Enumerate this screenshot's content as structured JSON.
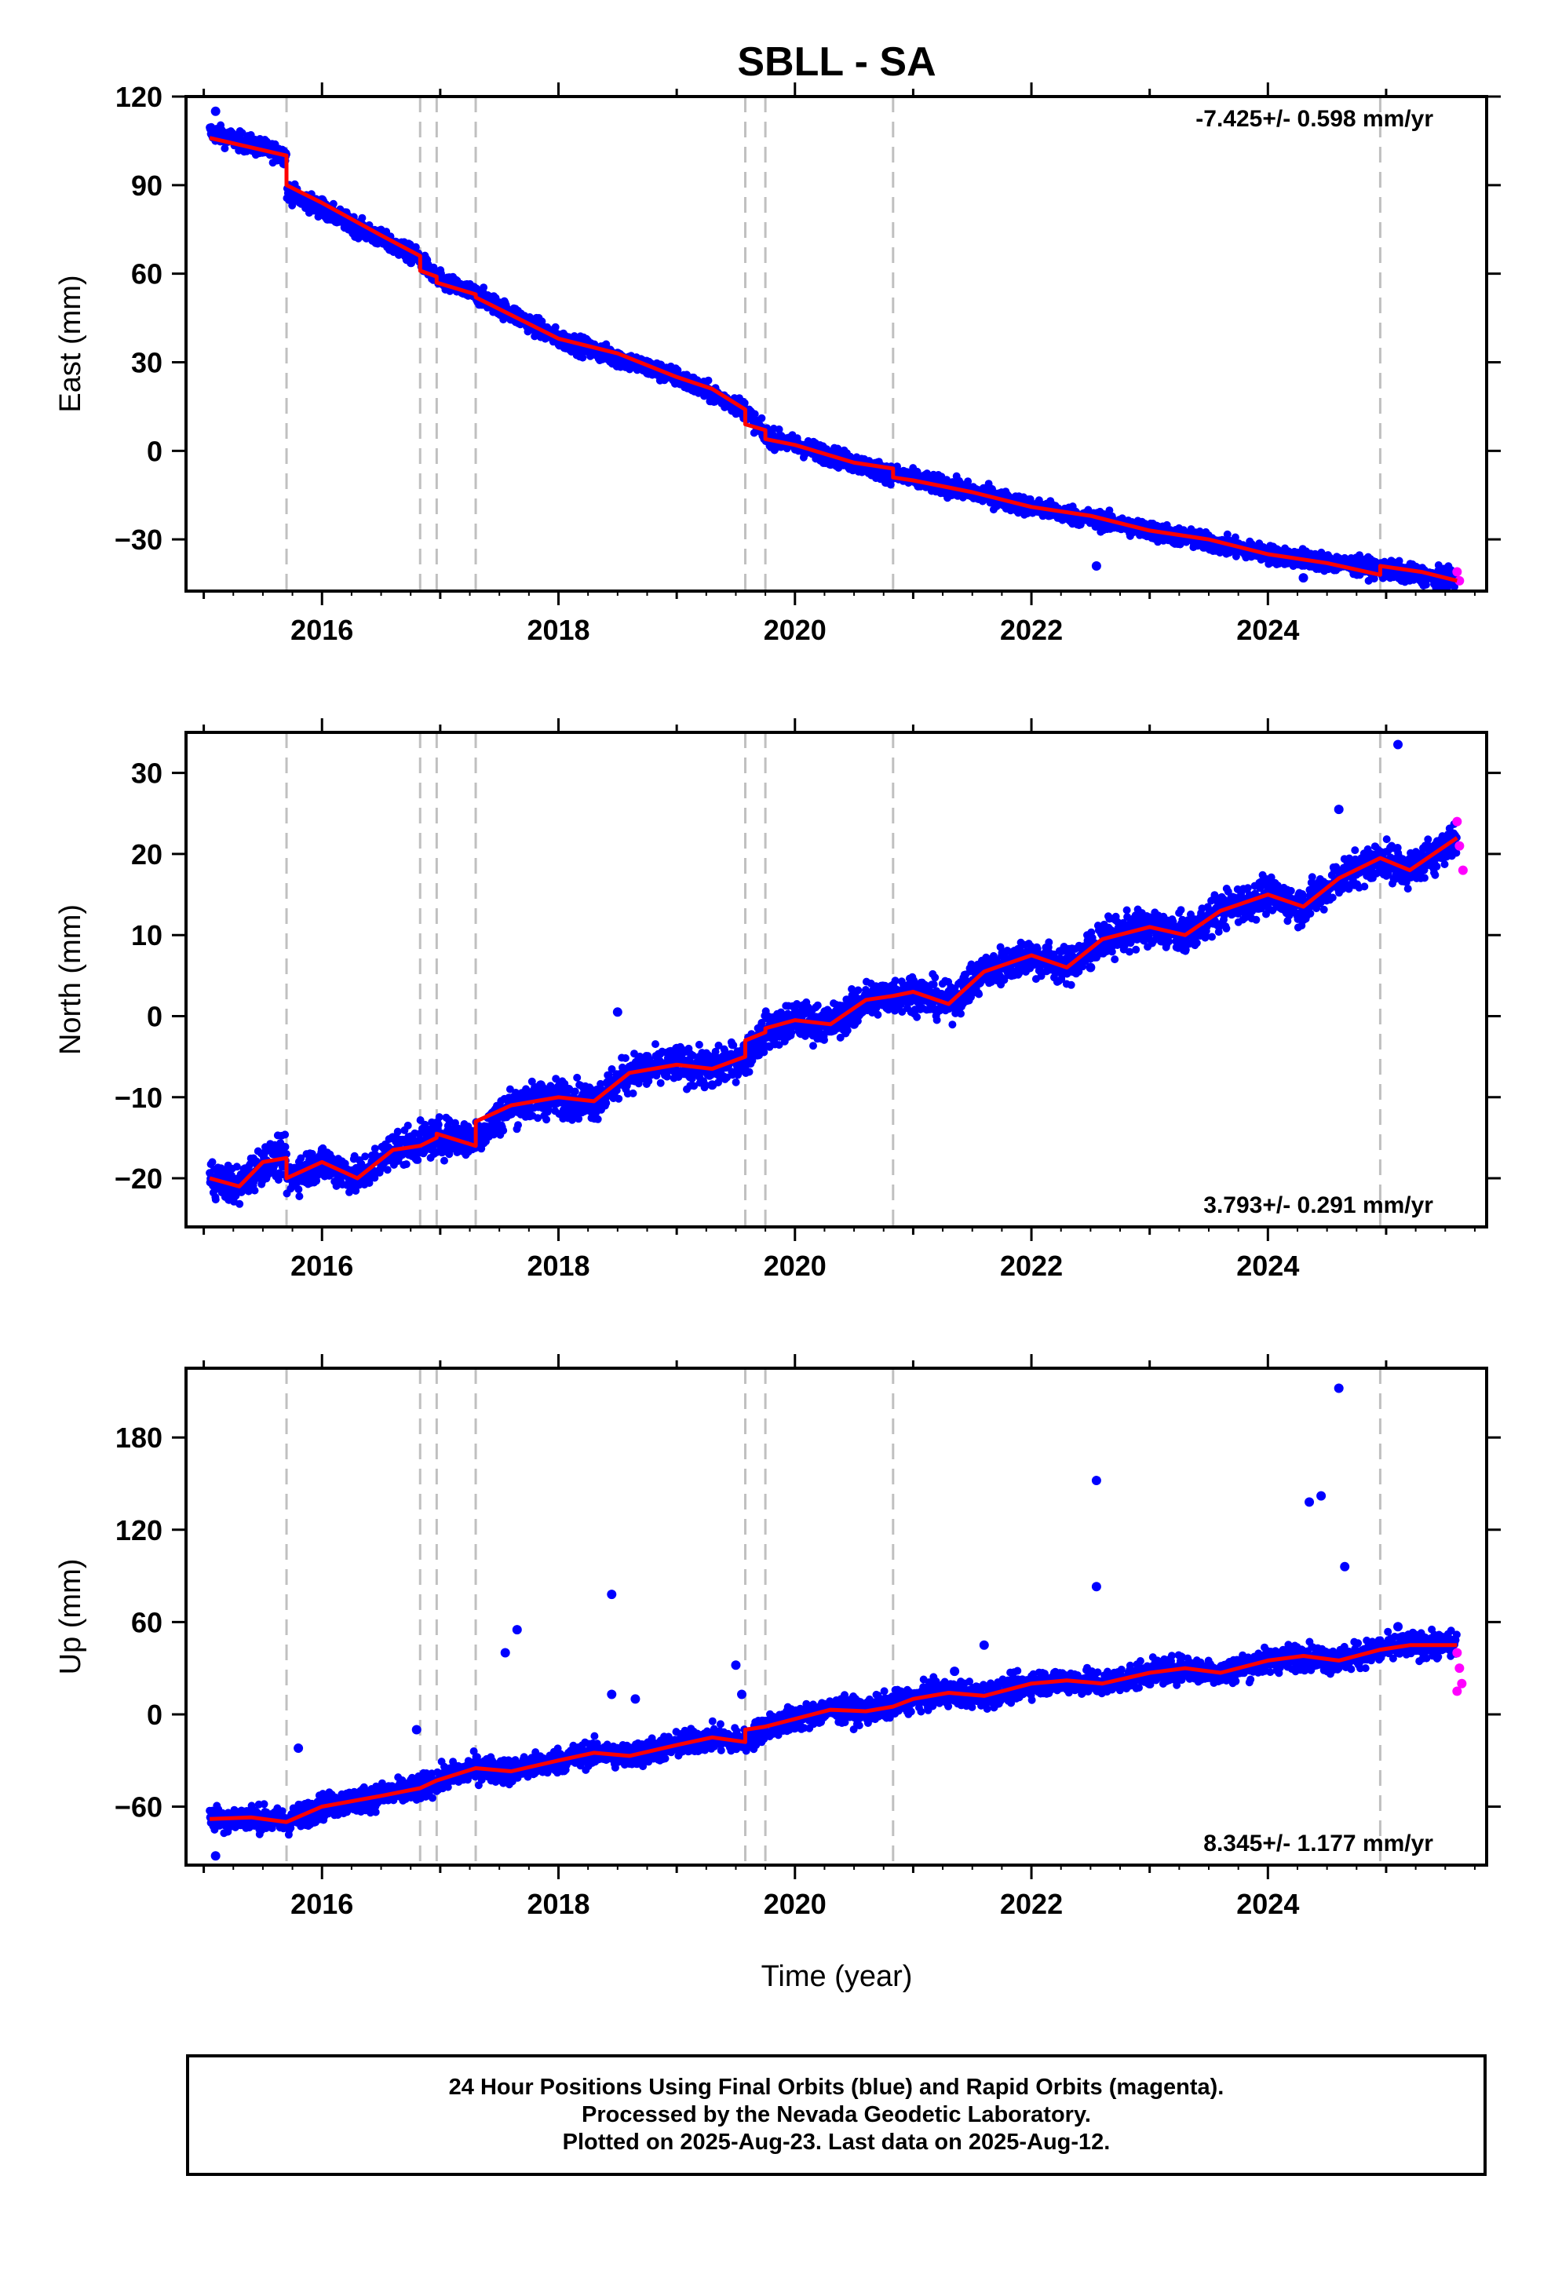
{
  "chart_data": [
    {
      "type": "scatter",
      "title": "SBLL - SA",
      "ylabel": "East (mm)",
      "xlabel": "",
      "xlim": [
        2014.85,
        2025.85
      ],
      "ylim": [
        -47.5,
        120
      ],
      "xticks": [
        2016,
        2018,
        2020,
        2022,
        2024
      ],
      "yticks": [
        -30,
        0,
        30,
        60,
        90,
        120
      ],
      "rate_label": "-7.425+/- 0.598 mm/yr",
      "rate_position": "top-right",
      "grid": false,
      "colors": {
        "final": "#0000ff",
        "rapid": "#ff00ff",
        "model": "#ff0000",
        "events": "#c0c0c0"
      },
      "event_lines": [
        2015.7,
        2016.83,
        2016.97,
        2017.3,
        2019.58,
        2019.75,
        2020.83,
        2024.95
      ],
      "model": {
        "x": [
          2015.05,
          2015.7,
          2015.7,
          2016.0,
          2016.5,
          2016.83,
          2016.83,
          2016.97,
          2016.97,
          2017.3,
          2017.3,
          2018.0,
          2018.5,
          2019.0,
          2019.3,
          2019.58,
          2019.58,
          2019.75,
          2019.75,
          2020.0,
          2020.5,
          2020.83,
          2020.83,
          2021.0,
          2021.5,
          2022.0,
          2022.5,
          2023.0,
          2023.5,
          2024.0,
          2024.5,
          2024.95,
          2024.95,
          2025.3,
          2025.6
        ],
        "y": [
          106,
          100,
          90,
          84,
          73,
          66,
          61,
          59,
          57,
          53,
          52,
          38,
          33,
          25,
          21,
          14,
          9,
          7,
          4,
          2,
          -4,
          -6,
          -9,
          -10,
          -14,
          -19,
          -22,
          -27,
          -30,
          -35,
          -38,
          -42,
          -39,
          -41,
          -44
        ]
      },
      "final_orbits": {
        "x": [
          2015.1,
          2015.5,
          2016.0,
          2016.5,
          2017.0,
          2017.5,
          2018.0,
          2018.5,
          2019.0,
          2019.5,
          2020.0,
          2020.5,
          2021.0,
          2021.5,
          2022.0,
          2022.5,
          2022.55,
          2023.0,
          2023.5,
          2024.0,
          2024.3,
          2024.5,
          2025.0,
          2025.5
        ],
        "y": [
          115,
          104,
          85,
          73,
          60,
          50,
          38,
          33,
          25,
          16,
          3,
          -4,
          -10,
          -14,
          -19,
          -22,
          -39,
          -27,
          -30,
          -35,
          -43,
          -37,
          -40,
          -44
        ]
      },
      "rapid_orbits": {
        "x": [
          2025.6,
          2025.62
        ],
        "y": [
          -41,
          -44
        ]
      },
      "band": {
        "x": [
          2015.05,
          2015.7,
          2015.7,
          2016.83,
          2016.97,
          2017.3,
          2018.0,
          2019.0,
          2019.58,
          2019.75,
          2020.0,
          2020.83,
          2021.5,
          2022.0,
          2023.0,
          2024.0,
          2024.95,
          2025.6
        ],
        "y": [
          108,
          100,
          88,
          65,
          58,
          53,
          38,
          25,
          14,
          5,
          2,
          -8,
          -14,
          -19,
          -27,
          -35,
          -40,
          -44
        ],
        "spread": 3.0
      }
    },
    {
      "type": "scatter",
      "title": "",
      "ylabel": "North (mm)",
      "xlabel": "",
      "xlim": [
        2014.85,
        2025.85
      ],
      "ylim": [
        -26,
        35
      ],
      "xticks": [
        2016,
        2018,
        2020,
        2022,
        2024
      ],
      "yticks": [
        -20,
        -10,
        0,
        10,
        20,
        30
      ],
      "rate_label": "3.793+/- 0.291 mm/yr",
      "rate_position": "bottom-right",
      "grid": false,
      "colors": {
        "final": "#0000ff",
        "rapid": "#ff00ff",
        "model": "#ff0000",
        "events": "#c0c0c0"
      },
      "event_lines": [
        2015.7,
        2016.83,
        2016.97,
        2017.3,
        2019.58,
        2019.75,
        2020.83,
        2024.95
      ],
      "model": {
        "x": [
          2015.05,
          2015.3,
          2015.5,
          2015.7,
          2015.7,
          2016.0,
          2016.3,
          2016.6,
          2016.83,
          2016.83,
          2016.97,
          2016.97,
          2017.3,
          2017.3,
          2017.6,
          2018.0,
          2018.3,
          2018.6,
          2019.0,
          2019.3,
          2019.58,
          2019.58,
          2019.75,
          2019.75,
          2020.0,
          2020.3,
          2020.6,
          2020.83,
          2021.0,
          2021.3,
          2021.6,
          2022.0,
          2022.3,
          2022.6,
          2023.0,
          2023.3,
          2023.6,
          2024.0,
          2024.3,
          2024.6,
          2024.95,
          2025.2,
          2025.6
        ],
        "y": [
          -20,
          -21,
          -18,
          -17.5,
          -20,
          -18,
          -20,
          -16.5,
          -16,
          -16,
          -15,
          -14.5,
          -16,
          -13,
          -11,
          -10,
          -10.5,
          -7,
          -6,
          -6.5,
          -5,
          -3,
          -2,
          -1.5,
          -0.5,
          -1,
          2,
          2.5,
          3,
          1.5,
          5.5,
          7.5,
          6,
          9.5,
          11,
          10,
          13,
          15,
          13.5,
          17,
          19.5,
          18,
          22
        ]
      },
      "final_orbits": {
        "x": [
          2015.2,
          2015.6,
          2016.1,
          2016.6,
          2017.1,
          2017.6,
          2017.85,
          2018.2,
          2018.5,
          2019.0,
          2019.3,
          2019.7,
          2020.0,
          2020.5,
          2020.9,
          2021.3,
          2021.6,
          2022.0,
          2022.5,
          2023.0,
          2023.4,
          2023.8,
          2024.0,
          2024.6,
          2025.1,
          2025.6
        ],
        "y": [
          -22,
          -16,
          -19,
          -15,
          -14,
          -12,
          -8.5,
          -10,
          0.5,
          -4,
          -8.5,
          -3,
          0,
          -1,
          2,
          1,
          6,
          7,
          6,
          11,
          10,
          13,
          16,
          25.5,
          33.5,
          21
        ]
      },
      "rapid_orbits": {
        "x": [
          2025.6,
          2025.62,
          2025.65
        ],
        "y": [
          24,
          21,
          18
        ]
      },
      "band": {
        "x": [
          2015.05,
          2015.3,
          2015.5,
          2015.7,
          2015.7,
          2016.0,
          2016.3,
          2016.6,
          2016.97,
          2017.3,
          2017.6,
          2018.0,
          2018.3,
          2018.6,
          2019.0,
          2019.3,
          2019.58,
          2019.75,
          2020.0,
          2020.3,
          2020.6,
          2021.0,
          2021.3,
          2021.6,
          2022.0,
          2022.3,
          2022.6,
          2023.0,
          2023.3,
          2023.6,
          2024.0,
          2024.3,
          2024.6,
          2024.95,
          2025.2,
          2025.6
        ],
        "y": [
          -20,
          -21,
          -18,
          -17.5,
          -20,
          -18,
          -20,
          -16.5,
          -15,
          -15,
          -11,
          -10,
          -10.5,
          -7,
          -6,
          -6.5,
          -5,
          -2,
          -0.5,
          -1,
          2,
          3,
          1.5,
          5.5,
          7.5,
          6,
          9.5,
          11,
          10,
          13,
          15,
          13.5,
          17,
          19.5,
          18,
          22
        ],
        "spread": 2.2
      }
    },
    {
      "type": "scatter",
      "title": "",
      "ylabel": "Up (mm)",
      "xlabel": "Time (year)",
      "xlim": [
        2014.85,
        2025.85
      ],
      "ylim": [
        -98,
        225
      ],
      "xticks": [
        2016,
        2018,
        2020,
        2022,
        2024
      ],
      "yticks": [
        -60,
        0,
        60,
        120,
        180
      ],
      "rate_label": "8.345+/- 1.177 mm/yr",
      "rate_position": "bottom-right",
      "grid": false,
      "colors": {
        "final": "#0000ff",
        "rapid": "#ff00ff",
        "model": "#ff0000",
        "events": "#c0c0c0"
      },
      "event_lines": [
        2015.7,
        2016.83,
        2016.97,
        2017.3,
        2019.58,
        2019.75,
        2020.83,
        2024.95
      ],
      "model": {
        "x": [
          2015.05,
          2015.4,
          2015.7,
          2016.0,
          2016.5,
          2016.83,
          2016.97,
          2017.3,
          2017.6,
          2018.0,
          2018.3,
          2018.6,
          2019.0,
          2019.3,
          2019.58,
          2019.58,
          2019.75,
          2020.0,
          2020.3,
          2020.6,
          2020.83,
          2021.0,
          2021.3,
          2021.6,
          2022.0,
          2022.3,
          2022.6,
          2023.0,
          2023.3,
          2023.6,
          2024.0,
          2024.3,
          2024.6,
          2024.95,
          2025.2,
          2025.6
        ],
        "y": [
          -68,
          -67,
          -70,
          -60,
          -53,
          -48,
          -43,
          -35,
          -37,
          -30,
          -25,
          -27,
          -20,
          -15,
          -18,
          -10,
          -8,
          -3,
          3,
          2,
          5,
          10,
          14,
          12,
          20,
          22,
          20,
          27,
          30,
          27,
          35,
          38,
          35,
          42,
          45,
          45
        ]
      },
      "final_orbits": {
        "x": [
          2015.1,
          2015.8,
          2016.8,
          2017.55,
          2017.65,
          2018.45,
          2018.45,
          2018.65,
          2019.5,
          2019.55,
          2021.35,
          2021.6,
          2022.55,
          2022.55,
          2024.35,
          2024.45,
          2024.6,
          2024.65,
          2025.1
        ],
        "y": [
          -92,
          -22,
          -10,
          40,
          55,
          78,
          13,
          10,
          32,
          13,
          28,
          45,
          152,
          83,
          138,
          142,
          212,
          96,
          57
        ]
      },
      "rapid_orbits": {
        "x": [
          2025.6,
          2025.62,
          2025.64,
          2025.6
        ],
        "y": [
          40,
          30,
          20,
          15
        ]
      },
      "band": {
        "x": [
          2015.05,
          2015.4,
          2015.7,
          2016.0,
          2016.5,
          2016.83,
          2016.97,
          2017.3,
          2017.6,
          2018.0,
          2018.3,
          2018.6,
          2019.0,
          2019.3,
          2019.58,
          2019.75,
          2020.0,
          2020.3,
          2020.6,
          2021.0,
          2021.3,
          2021.6,
          2022.0,
          2022.3,
          2022.6,
          2023.0,
          2023.3,
          2023.6,
          2024.0,
          2024.3,
          2024.6,
          2024.95,
          2025.2,
          2025.6
        ],
        "y": [
          -68,
          -67,
          -70,
          -60,
          -53,
          -48,
          -43,
          -35,
          -37,
          -30,
          -25,
          -27,
          -20,
          -15,
          -18,
          -8,
          -3,
          3,
          2,
          10,
          14,
          12,
          20,
          22,
          20,
          27,
          30,
          27,
          35,
          38,
          35,
          42,
          45,
          45
        ],
        "spread": 8
      }
    }
  ],
  "footer": {
    "line1": "24 Hour Positions Using Final Orbits (blue) and Rapid Orbits (magenta).",
    "line2": "Processed by the Nevada Geodetic Laboratory.",
    "line3": "Plotted on 2025-Aug-23. Last data on 2025-Aug-12."
  }
}
